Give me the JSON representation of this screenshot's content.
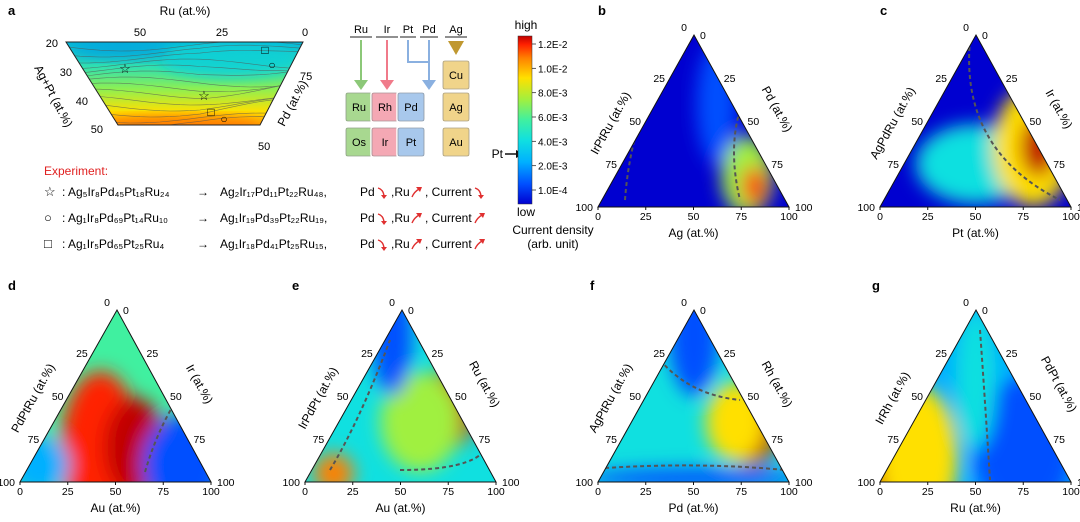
{
  "colors": {
    "colormap": [
      "#0000d0",
      "#0050ff",
      "#00b0ff",
      "#10e0e0",
      "#40f0a0",
      "#a0f040",
      "#ffe000",
      "#ff8000",
      "#ff2000",
      "#c00000"
    ],
    "contour_line": "#555555",
    "experiment_text": "#e02020",
    "arrow_red": "#e03030",
    "arrow_green": "#8cc878",
    "arrow_pink": "#f07a8a",
    "arrow_blue": "#8ab0e0",
    "arrow_gold": "#c09830",
    "tile_green": "#a8d890",
    "tile_pink": "#f4a8b4",
    "tile_blue": "#a8c8ec",
    "tile_gold": "#f0d48a"
  },
  "panel_a": {
    "label": "a",
    "top_axis": "Ru (at.%)",
    "top_ticks": [
      "50",
      "25",
      "0"
    ],
    "left_axis": "Ag+Pt (at.%)",
    "left_ticks": [
      "20",
      "30",
      "40",
      "50"
    ],
    "right_axis": "Pd (at.%)",
    "right_ticks": [
      "75",
      "50"
    ],
    "marker_star": "☆",
    "marker_circle": "○",
    "marker_square": "□"
  },
  "element_scheme": {
    "headers": [
      "Ru",
      "Ir",
      "Pt",
      "Pd",
      "Ag"
    ],
    "tiles": [
      {
        "symbol": "Cu",
        "color": "gold"
      },
      {
        "symbol": "Ru",
        "color": "green"
      },
      {
        "symbol": "Rh",
        "color": "pink"
      },
      {
        "symbol": "Pd",
        "color": "blue"
      },
      {
        "symbol": "Ag",
        "color": "gold"
      },
      {
        "symbol": "Os",
        "color": "green"
      },
      {
        "symbol": "Ir",
        "color": "pink"
      },
      {
        "symbol": "Pt",
        "color": "blue"
      },
      {
        "symbol": "Au",
        "color": "gold"
      }
    ],
    "pt_pointer": "Pt"
  },
  "colorbar": {
    "high_label": "high",
    "low_label": "low",
    "ticks": [
      "1.2E-2",
      "1.0E-2",
      "8.0E-3",
      "6.0E-3",
      "4.0E-3",
      "2.0E-3",
      "1.0E-4"
    ],
    "title_line1": "Current density",
    "title_line2": "(arb. unit)"
  },
  "experiment": {
    "title": "Experiment:",
    "rows": [
      {
        "marker": "☆",
        "from": ": Ag₅Ir₈Pd₄₅Pt₁₈Ru₂₄",
        "arrow": "→",
        "to": "Ag₂Ir₁₇Pd₁₁Pt₂₂Ru₄₈,",
        "pd": "Pd",
        "ru": ",Ru",
        "current": ", Current",
        "pd_dir": "down",
        "ru_dir": "up",
        "cur_dir": "down"
      },
      {
        "marker": "○",
        "from": ": Ag₁Ir₈Pd₆₉Pt₁₄Ru₁₀",
        "arrow": "→",
        "to": "Ag₁Ir₁₉Pd₃₉Pt₂₂Ru₁₉,",
        "pd": "Pd",
        "ru": ",Ru",
        "current": ", Current",
        "pd_dir": "down",
        "ru_dir": "up",
        "cur_dir": "up"
      },
      {
        "marker": "□",
        "from": ": Ag₁Ir₅Pd₆₅Pt₂₅Ru₄",
        "arrow": "→",
        "to": "Ag₁Ir₁₈Pd₄₁Pt₂₅Ru₁₅,",
        "pd": "Pd",
        "ru": ",Ru",
        "current": ", Current",
        "pd_dir": "down",
        "ru_dir": "up",
        "cur_dir": "up"
      }
    ]
  },
  "chart_data": [
    {
      "panel": "b",
      "type": "heatmap",
      "bottom_label": "Ag (at.%)",
      "left_label": "IrPtRu (at.%)",
      "right_label": "Pd (at.%)",
      "bottom_ticks": [
        "0",
        "25",
        "50",
        "75",
        "100"
      ],
      "left_ticks": [
        "100",
        "75",
        "50",
        "25"
      ],
      "right_ticks": [
        "0",
        "25",
        "50",
        "75",
        "100"
      ],
      "apex_tick": "0",
      "hotspots": [
        {
          "pd": 25,
          "ag": 60,
          "level": 0.95
        },
        {
          "pd": 12,
          "ag": 75,
          "level": 0.55
        }
      ]
    },
    {
      "panel": "c",
      "type": "heatmap",
      "bottom_label": "Pt (at.%)",
      "left_label": "AgPdRu (at.%)",
      "right_label": "Ir (at.%)",
      "bottom_ticks": [
        "0",
        "25",
        "50",
        "75",
        "100"
      ],
      "left_ticks": [
        "100",
        "75",
        "50",
        "25"
      ],
      "right_ticks": [
        "0",
        "25",
        "50",
        "75",
        "100"
      ],
      "apex_tick": "0",
      "hotspots": [
        {
          "ir": 45,
          "pt": 50,
          "level": 1.0
        },
        {
          "ir": 25,
          "pt": 65,
          "level": 0.8
        }
      ]
    },
    {
      "panel": "d",
      "type": "heatmap",
      "bottom_label": "Au (at.%)",
      "left_label": "PdPtRu (at.%)",
      "right_label": "Ir (at.%)",
      "bottom_ticks": [
        "0",
        "25",
        "50",
        "75",
        "100"
      ],
      "left_ticks": [
        "100",
        "75",
        "50",
        "25"
      ],
      "right_ticks": [
        "0",
        "25",
        "50",
        "75",
        "100"
      ],
      "apex_tick": "0",
      "hotspots": [
        {
          "ir": 75,
          "au": 15,
          "level": 1.0
        },
        {
          "ir": 45,
          "au": 25,
          "level": 0.85
        }
      ]
    },
    {
      "panel": "e",
      "type": "heatmap",
      "bottom_label": "Au (at.%)",
      "left_label": "IrPdPt (at.%)",
      "right_label": "Ru (at.%)",
      "bottom_ticks": [
        "0",
        "25",
        "50",
        "75",
        "100"
      ],
      "left_ticks": [
        "100",
        "75",
        "50",
        "25"
      ],
      "right_ticks": [
        "0",
        "25",
        "50",
        "75",
        "100"
      ],
      "apex_tick": "0",
      "hotspots": [
        {
          "ru": 50,
          "au": 35,
          "level": 1.0
        },
        {
          "ru": 35,
          "au": 40,
          "level": 0.7
        }
      ]
    },
    {
      "panel": "f",
      "type": "heatmap",
      "bottom_label": "Pd (at.%)",
      "left_label": "AgPtRu (at.%)",
      "right_label": "Rh (at.%)",
      "bottom_ticks": [
        "0",
        "25",
        "50",
        "75",
        "100"
      ],
      "left_ticks": [
        "100",
        "75",
        "50",
        "25"
      ],
      "right_ticks": [
        "0",
        "25",
        "50",
        "75",
        "100"
      ],
      "apex_tick": "0",
      "hotspots": [
        {
          "rh": 30,
          "pd": 60,
          "level": 1.0
        },
        {
          "rh": 40,
          "pd": 45,
          "level": 0.7
        }
      ]
    },
    {
      "panel": "g",
      "type": "heatmap",
      "bottom_label": "Ru (at.%)",
      "left_label": "IrRh (at.%)",
      "right_label": "PdPt (at.%)",
      "bottom_ticks": [
        "0",
        "25",
        "50",
        "75",
        "100"
      ],
      "left_ticks": [
        "100",
        "75",
        "50",
        "25"
      ],
      "right_ticks": [
        "0",
        "25",
        "50",
        "75",
        "100"
      ],
      "apex_tick": "0",
      "hotspots": [
        {
          "pdpt": 5,
          "ru": 0,
          "level": 1.0
        },
        {
          "pdpt": 10,
          "ru": 15,
          "level": 0.8
        }
      ]
    }
  ]
}
